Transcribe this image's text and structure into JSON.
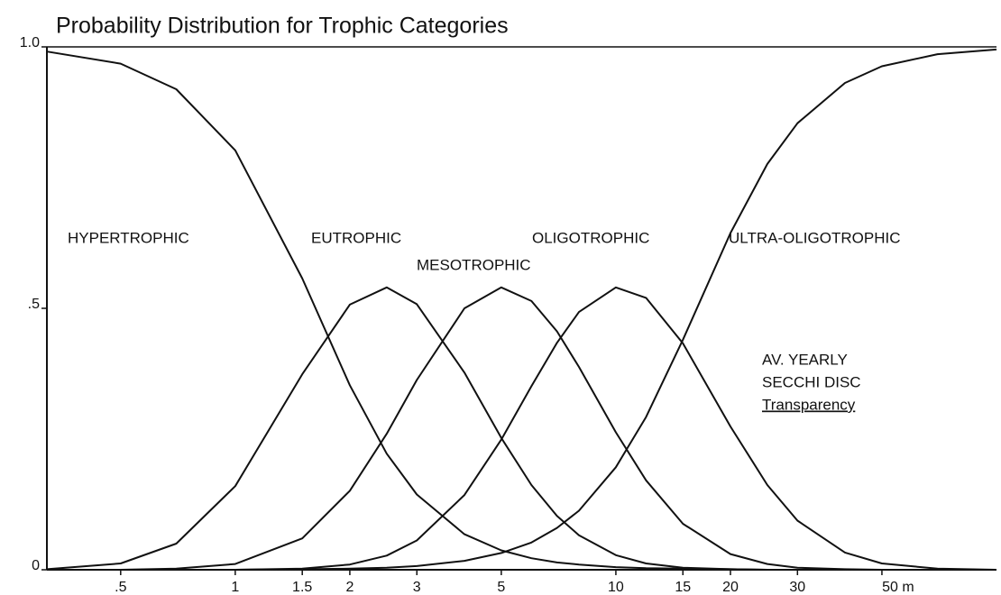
{
  "chart_data": {
    "type": "line",
    "title": "Probability Distribution for Trophic Categories",
    "x": [
      0.32,
      0.5,
      0.7,
      1,
      1.5,
      2,
      2.5,
      3,
      4,
      5,
      6,
      7,
      8,
      10,
      12,
      15,
      20,
      25,
      30,
      40,
      50,
      70,
      100
    ],
    "series": [
      {
        "name": "HYPERTROPHIC",
        "color": "#111111",
        "values": [
          0.991,
          0.968,
          0.919,
          0.802,
          0.557,
          0.353,
          0.222,
          0.144,
          0.068,
          0.037,
          0.022,
          0.014,
          0.01,
          0.005,
          0.003,
          0.002,
          0.001,
          0,
          0,
          0,
          0,
          0,
          0
        ]
      },
      {
        "name": "EUTROPHIC",
        "color": "#111111",
        "values": [
          0.001,
          0.012,
          0.05,
          0.16,
          0.374,
          0.507,
          0.54,
          0.508,
          0.377,
          0.252,
          0.162,
          0.103,
          0.066,
          0.028,
          0.012,
          0.004,
          0.001,
          0,
          0,
          0,
          0,
          0,
          0
        ]
      },
      {
        "name": "MESOTROPHIC",
        "color": "#111111",
        "values": [
          0,
          0,
          0.002,
          0.011,
          0.06,
          0.151,
          0.26,
          0.363,
          0.5,
          0.54,
          0.514,
          0.456,
          0.388,
          0.263,
          0.171,
          0.088,
          0.03,
          0.011,
          0.004,
          0.001,
          0,
          0,
          0
        ]
      },
      {
        "name": "OLIGOTROPHIC",
        "color": "#111111",
        "values": [
          0,
          0,
          0,
          0,
          0.002,
          0.01,
          0.027,
          0.056,
          0.143,
          0.249,
          0.351,
          0.434,
          0.493,
          0.54,
          0.52,
          0.433,
          0.274,
          0.162,
          0.094,
          0.033,
          0.012,
          0.002,
          0
        ]
      },
      {
        "name": "ULTRA-OLIGOTROPHIC",
        "color": "#111111",
        "values": [
          0,
          0,
          0,
          0,
          0.001,
          0.002,
          0.004,
          0.007,
          0.017,
          0.032,
          0.052,
          0.08,
          0.113,
          0.196,
          0.292,
          0.44,
          0.644,
          0.776,
          0.854,
          0.931,
          0.963,
          0.986,
          0.995
        ]
      }
    ],
    "annotations": [
      "AV. YEARLY",
      "SECCHI DISC",
      "Transparency"
    ],
    "xlim": [
      0.32,
      100
    ],
    "xlog": true,
    "xticks": [
      {
        "value": 0.5,
        "label": ".5"
      },
      1,
      1.5,
      2,
      3,
      5,
      10,
      15,
      20,
      30,
      {
        "value": 50,
        "label": "50 m"
      }
    ],
    "ylim": [
      0,
      1
    ],
    "yticks": [
      0,
      {
        "value": 0.5,
        "label": ".5"
      },
      {
        "value": 1,
        "label": "1.0"
      }
    ],
    "grid": false
  }
}
